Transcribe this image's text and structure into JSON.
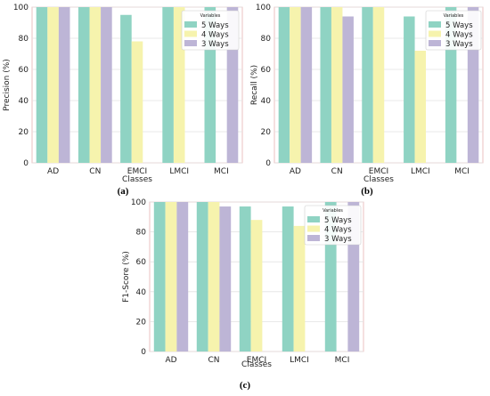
{
  "colors": {
    "five_ways": "#8fd3c3",
    "four_ways": "#f6f3ad",
    "three_ways": "#bdb5d6",
    "grid": "#e2e2e2",
    "frame": "#e6b3b3"
  },
  "chart_data": [
    {
      "type": "bar",
      "caption": "(a)",
      "categories": [
        "AD",
        "CN",
        "EMCI",
        "LMCI",
        "MCI"
      ],
      "xlabel": "Classes",
      "ylabel": "Precision (%)",
      "ylim": [
        0,
        100
      ],
      "yticks": [
        "0",
        "20",
        "40",
        "60",
        "80",
        "100"
      ],
      "legend_title": "Variables",
      "legend_position": "top-right",
      "series": [
        {
          "name": "5 Ways",
          "values": [
            100,
            100,
            95,
            100,
            100
          ]
        },
        {
          "name": "4 Ways",
          "values": [
            100,
            100,
            78,
            100,
            0
          ]
        },
        {
          "name": "3 Ways",
          "values": [
            100,
            100,
            0,
            0,
            100
          ]
        }
      ]
    },
    {
      "type": "bar",
      "caption": "(b)",
      "categories": [
        "AD",
        "CN",
        "EMCI",
        "LMCI",
        "MCI"
      ],
      "xlabel": "Classes",
      "ylabel": "Recall (%)",
      "ylim": [
        0,
        100
      ],
      "yticks": [
        "0",
        "20",
        "40",
        "60",
        "80",
        "100"
      ],
      "legend_title": "Variables",
      "legend_position": "top-right",
      "series": [
        {
          "name": "5 Ways",
          "values": [
            100,
            100,
            100,
            94,
            100
          ]
        },
        {
          "name": "4 Ways",
          "values": [
            100,
            100,
            100,
            72,
            0
          ]
        },
        {
          "name": "3 Ways",
          "values": [
            100,
            94,
            0,
            0,
            100
          ]
        }
      ]
    },
    {
      "type": "bar",
      "caption": "(c)",
      "categories": [
        "AD",
        "CN",
        "EMCI",
        "LMCI",
        "MCI"
      ],
      "xlabel": "Classes",
      "ylabel": "F1-Score (%)",
      "ylim": [
        0,
        100
      ],
      "yticks": [
        "0",
        "20",
        "40",
        "60",
        "80",
        "100"
      ],
      "legend_title": "Variables",
      "legend_position": "top-right",
      "series": [
        {
          "name": "5 Ways",
          "values": [
            100,
            100,
            97,
            97,
            100
          ]
        },
        {
          "name": "4 Ways",
          "values": [
            100,
            100,
            88,
            84,
            0
          ]
        },
        {
          "name": "3 Ways",
          "values": [
            100,
            97,
            0,
            0,
            100
          ]
        }
      ]
    }
  ]
}
